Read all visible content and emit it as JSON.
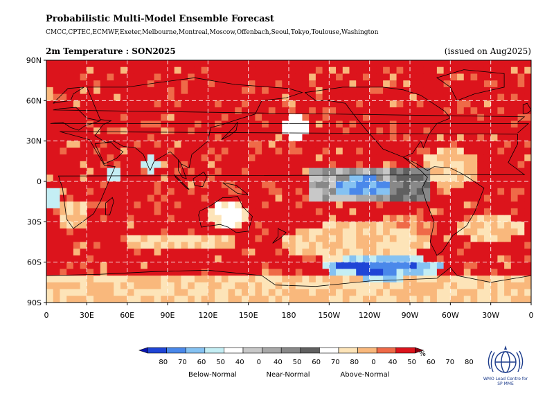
{
  "header": {
    "title": "Probabilistic Multi-Model Ensemble Forecast",
    "centres": "CMCC,CPTEC,ECMWF,Exeter,Melbourne,Montreal,Moscow,Offenbach,Seoul,Tokyo,Toulouse,Washington",
    "variable": "2m Temperature : SON2025",
    "issued": "(issued on Aug2025)"
  },
  "axes": {
    "lat_labels": [
      "90N",
      "60N",
      "30N",
      "0",
      "30S",
      "60S",
      "90S"
    ],
    "lon_labels": [
      "0",
      "30E",
      "60E",
      "90E",
      "120E",
      "150E",
      "180",
      "150W",
      "120W",
      "90W",
      "60W",
      "30W",
      "0"
    ]
  },
  "legend": {
    "unit": "%",
    "below": {
      "label": "Below-Normal",
      "ticks": [
        "80",
        "70",
        "60",
        "50",
        "40"
      ],
      "colors": [
        "#1f45d6",
        "#4a88ea",
        "#85c2f2",
        "#c4eef4",
        "#ffffff"
      ]
    },
    "near": {
      "label": "Near-Normal",
      "ticks": [
        "0",
        "40",
        "50",
        "60",
        "70",
        "80"
      ],
      "colors": [
        "#ffffff",
        "#c8c8c8",
        "#a8a8a8",
        "#888888",
        "#606060"
      ]
    },
    "above": {
      "label": "Above-Normal",
      "ticks": [
        "0",
        "40",
        "50",
        "60",
        "70",
        "80"
      ],
      "colors": [
        "#ffffff",
        "#fde4b8",
        "#f9b87c",
        "#ef6a48",
        "#dc141c"
      ]
    },
    "arrow_left": "#0a14b0",
    "arrow_right": "#8a0010"
  },
  "logo": {
    "caption_line1": "WMO Lead Centre for",
    "caption_line2": "SP MME"
  }
}
